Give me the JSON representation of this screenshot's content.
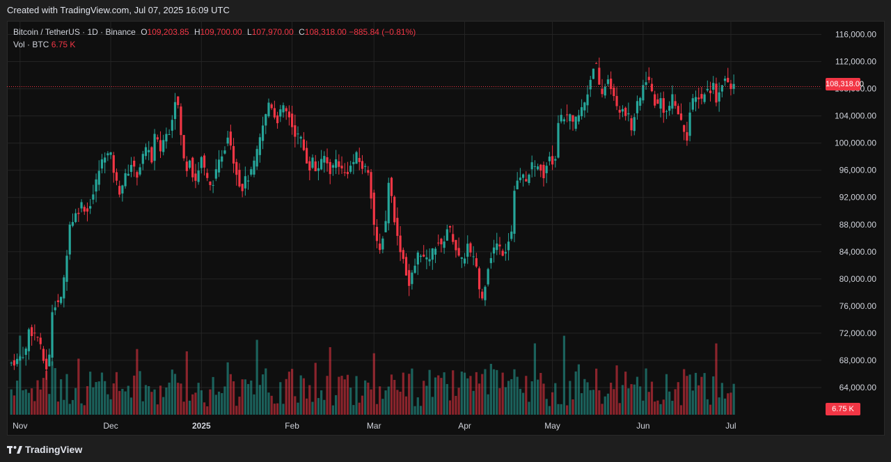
{
  "header": {
    "created_text": "Created with TradingView.com, Jul 07, 2025 16:09 UTC"
  },
  "legend": {
    "symbol": "Bitcoin / TetherUS · 1D · Binance",
    "o_label": "O",
    "o_value": "109,203.85",
    "h_label": "H",
    "h_value": "109,700.00",
    "l_label": "L",
    "l_value": "107,970.00",
    "c_label": "C",
    "c_value": "108,318.00",
    "change": "−885.84 (−0.81%)",
    "vol_label": "Vol · BTC",
    "vol_value": "6.75 K"
  },
  "price_tag": "108,318.00",
  "volume_tag": "6.75 K",
  "footer": {
    "brand": "TradingView"
  },
  "colors": {
    "up": "#26a69a",
    "down": "#f23645",
    "grid": "#242424",
    "axis_text": "#d1d4dc"
  },
  "chart_data": {
    "type": "candlestick",
    "title": "Bitcoin / TetherUS · 1D · Binance",
    "y_ticks": [
      "116,000.00",
      "112,000.00",
      "108,000.00",
      "104,000.00",
      "100,000.00",
      "96,000.00",
      "92,000.00",
      "88,000.00",
      "84,000.00",
      "80,000.00",
      "76,000.00",
      "72,000.00",
      "68,000.00",
      "64,000.00"
    ],
    "y_tick_values": [
      116000,
      112000,
      108000,
      104000,
      100000,
      96000,
      92000,
      88000,
      84000,
      80000,
      76000,
      72000,
      68000,
      64000
    ],
    "x_ticks": [
      "Nov",
      "Dec",
      "2025",
      "Feb",
      "Mar",
      "Apr",
      "May",
      "Jun",
      "Jul"
    ],
    "x_tick_days": [
      4,
      35,
      66,
      97,
      125,
      156,
      186,
      217,
      247
    ],
    "ylim": [
      60000,
      118000
    ],
    "day_range": [
      0,
      277
    ],
    "last_price": 108318,
    "series_close": [
      [
        0,
        67500
      ],
      [
        3,
        68000
      ],
      [
        6,
        69500
      ],
      [
        7,
        72500
      ],
      [
        10,
        71500
      ],
      [
        12,
        68000
      ],
      [
        13,
        67000
      ],
      [
        14,
        68500
      ],
      [
        15,
        75500
      ],
      [
        16,
        76500
      ],
      [
        18,
        76800
      ],
      [
        19,
        80000
      ],
      [
        20,
        84000
      ],
      [
        21,
        88000
      ],
      [
        23,
        89500
      ],
      [
        25,
        91000
      ],
      [
        27,
        90000
      ],
      [
        29,
        92500
      ],
      [
        31,
        96000
      ],
      [
        33,
        98500
      ],
      [
        35,
        98000
      ],
      [
        36,
        96000
      ],
      [
        37,
        94000
      ],
      [
        38,
        93000
      ],
      [
        40,
        95000
      ],
      [
        42,
        97000
      ],
      [
        43,
        96000
      ],
      [
        44,
        95500
      ],
      [
        46,
        98000
      ],
      [
        48,
        99500
      ],
      [
        49,
        97000
      ],
      [
        50,
        101000
      ],
      [
        52,
        99000
      ],
      [
        53,
        100500
      ],
      [
        55,
        102000
      ],
      [
        56,
        104000
      ],
      [
        57,
        106500
      ],
      [
        58,
        105500
      ],
      [
        59,
        101000
      ],
      [
        60,
        97500
      ],
      [
        61,
        96500
      ],
      [
        62,
        98000
      ],
      [
        63,
        95500
      ],
      [
        64,
        94500
      ],
      [
        65,
        96000
      ],
      [
        66,
        98000
      ],
      [
        67,
        96000
      ],
      [
        68,
        94500
      ],
      [
        69,
        93500
      ],
      [
        71,
        95500
      ],
      [
        73,
        98500
      ],
      [
        74,
        99500
      ],
      [
        75,
        101500
      ],
      [
        76,
        100000
      ],
      [
        77,
        97500
      ],
      [
        78,
        96000
      ],
      [
        79,
        94000
      ],
      [
        80,
        93500
      ],
      [
        81,
        94500
      ],
      [
        82,
        95000
      ],
      [
        83,
        95500
      ],
      [
        85,
        98500
      ],
      [
        86,
        100500
      ],
      [
        87,
        102500
      ],
      [
        88,
        104000
      ],
      [
        89,
        106000
      ],
      [
        90,
        105500
      ],
      [
        91,
        104000
      ],
      [
        92,
        103500
      ],
      [
        93,
        104500
      ],
      [
        94,
        105000
      ],
      [
        95,
        104500
      ],
      [
        96,
        104000
      ],
      [
        97,
        102500
      ],
      [
        98,
        101500
      ],
      [
        99,
        101000
      ],
      [
        100,
        100500
      ],
      [
        101,
        99000
      ],
      [
        102,
        97500
      ],
      [
        103,
        96500
      ],
      [
        104,
        97500
      ],
      [
        105,
        96000
      ],
      [
        106,
        96500
      ],
      [
        107,
        97000
      ],
      [
        108,
        98000
      ],
      [
        109,
        97000
      ],
      [
        110,
        96000
      ],
      [
        111,
        96500
      ],
      [
        112,
        97500
      ],
      [
        113,
        97000
      ],
      [
        114,
        96000
      ],
      [
        115,
        95500
      ],
      [
        117,
        96500
      ],
      [
        119,
        98000
      ],
      [
        121,
        96500
      ],
      [
        123,
        96000
      ],
      [
        124,
        92500
      ],
      [
        125,
        88000
      ],
      [
        126,
        85000
      ],
      [
        127,
        84000
      ],
      [
        128,
        86500
      ],
      [
        129,
        88500
      ],
      [
        130,
        94500
      ],
      [
        131,
        92000
      ],
      [
        132,
        89000
      ],
      [
        133,
        86000
      ],
      [
        134,
        84500
      ],
      [
        135,
        83000
      ],
      [
        136,
        81000
      ],
      [
        137,
        79000
      ],
      [
        138,
        80500
      ],
      [
        139,
        82000
      ],
      [
        140,
        83500
      ],
      [
        141,
        84000
      ],
      [
        142,
        83000
      ],
      [
        143,
        82500
      ],
      [
        145,
        84000
      ],
      [
        146,
        85000
      ],
      [
        147,
        85500
      ],
      [
        148,
        84500
      ],
      [
        149,
        86000
      ],
      [
        150,
        87500
      ],
      [
        151,
        87000
      ],
      [
        152,
        86000
      ],
      [
        153,
        84500
      ],
      [
        154,
        83000
      ],
      [
        155,
        82500
      ],
      [
        156,
        83500
      ],
      [
        157,
        85000
      ],
      [
        158,
        83500
      ],
      [
        160,
        82000
      ],
      [
        161,
        78500
      ],
      [
        162,
        77000
      ],
      [
        163,
        79500
      ],
      [
        164,
        82000
      ],
      [
        165,
        83500
      ],
      [
        166,
        84500
      ],
      [
        167,
        85000
      ],
      [
        169,
        84000
      ],
      [
        170,
        84500
      ],
      [
        171,
        86000
      ],
      [
        172,
        87000
      ],
      [
        173,
        93000
      ],
      [
        174,
        94500
      ],
      [
        175,
        94500
      ],
      [
        176,
        95000
      ],
      [
        177,
        94000
      ],
      [
        178,
        96000
      ],
      [
        179,
        96500
      ],
      [
        180,
        96000
      ],
      [
        181,
        97000
      ],
      [
        182,
        96500
      ],
      [
        183,
        95500
      ],
      [
        184,
        97000
      ],
      [
        185,
        98500
      ],
      [
        186,
        97500
      ],
      [
        187,
        98000
      ],
      [
        188,
        103500
      ],
      [
        189,
        103500
      ],
      [
        190,
        104000
      ],
      [
        191,
        103500
      ],
      [
        192,
        103800
      ],
      [
        193,
        102500
      ],
      [
        194,
        103500
      ],
      [
        195,
        104000
      ],
      [
        197,
        106000
      ],
      [
        198,
        107500
      ],
      [
        199,
        109500
      ],
      [
        200,
        111500
      ],
      [
        201,
        111200
      ],
      [
        202,
        108000
      ],
      [
        203,
        107000
      ],
      [
        204,
        108500
      ],
      [
        205,
        109500
      ],
      [
        206,
        108500
      ],
      [
        207,
        106500
      ],
      [
        208,
        105000
      ],
      [
        209,
        104500
      ],
      [
        210,
        105500
      ],
      [
        211,
        104500
      ],
      [
        212,
        104000
      ],
      [
        213,
        102000
      ],
      [
        214,
        104000
      ],
      [
        215,
        105500
      ],
      [
        216,
        106500
      ],
      [
        217,
        108500
      ],
      [
        218,
        109500
      ],
      [
        219,
        109000
      ],
      [
        220,
        107500
      ],
      [
        221,
        106000
      ],
      [
        222,
        105500
      ],
      [
        223,
        106500
      ],
      [
        224,
        105000
      ],
      [
        225,
        104500
      ],
      [
        227,
        106500
      ],
      [
        229,
        104500
      ],
      [
        230,
        103000
      ],
      [
        231,
        102000
      ],
      [
        232,
        101000
      ],
      [
        233,
        104500
      ],
      [
        234,
        106000
      ],
      [
        235,
        106500
      ],
      [
        236,
        107000
      ],
      [
        237,
        106500
      ],
      [
        238,
        107500
      ],
      [
        240,
        108000
      ],
      [
        241,
        108500
      ],
      [
        242,
        106500
      ],
      [
        243,
        107500
      ],
      [
        244,
        109000
      ],
      [
        245,
        109500
      ],
      [
        246,
        108500
      ],
      [
        247,
        108000
      ],
      [
        248,
        108300
      ]
    ]
  }
}
